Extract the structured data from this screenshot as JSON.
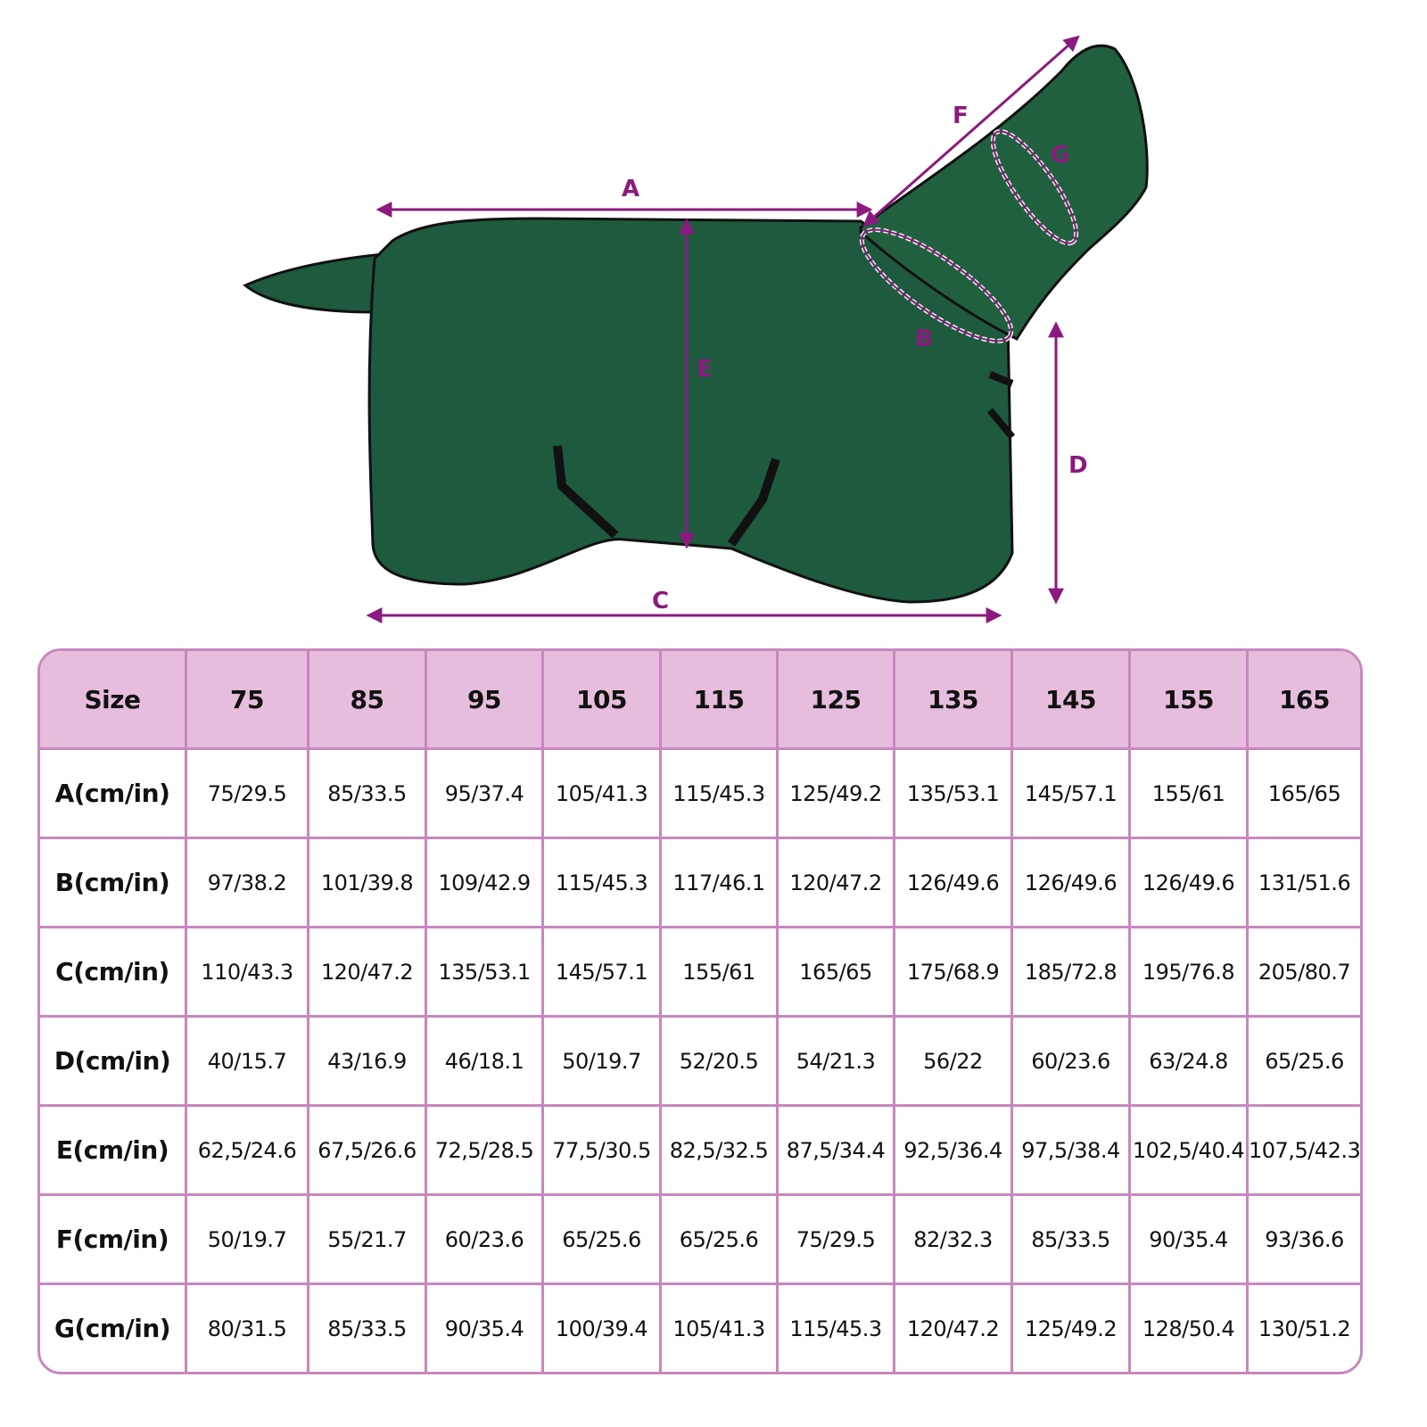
{
  "colors": {
    "accent": "#8b1a7e",
    "header_bg": "#e6bddc",
    "border": "#c887bf",
    "blanket": "#1d5a3e"
  },
  "diagram": {
    "labels": {
      "A": "A",
      "B": "B",
      "C": "C",
      "D": "D",
      "E": "E",
      "F": "F",
      "G": "G"
    }
  },
  "table": {
    "header": [
      "Size",
      "75",
      "85",
      "95",
      "105",
      "115",
      "125",
      "135",
      "145",
      "155",
      "165"
    ],
    "rows": [
      [
        "A(cm/in)",
        "75/29.5",
        "85/33.5",
        "95/37.4",
        "105/41.3",
        "115/45.3",
        "125/49.2",
        "135/53.1",
        "145/57.1",
        "155/61",
        "165/65"
      ],
      [
        "B(cm/in)",
        "97/38.2",
        "101/39.8",
        "109/42.9",
        "115/45.3",
        "117/46.1",
        "120/47.2",
        "126/49.6",
        "126/49.6",
        "126/49.6",
        "131/51.6"
      ],
      [
        "C(cm/in)",
        "110/43.3",
        "120/47.2",
        "135/53.1",
        "145/57.1",
        "155/61",
        "165/65",
        "175/68.9",
        "185/72.8",
        "195/76.8",
        "205/80.7"
      ],
      [
        "D(cm/in)",
        "40/15.7",
        "43/16.9",
        "46/18.1",
        "50/19.7",
        "52/20.5",
        "54/21.3",
        "56/22",
        "60/23.6",
        "63/24.8",
        "65/25.6"
      ],
      [
        "E(cm/in)",
        "62,5/24.6",
        "67,5/26.6",
        "72,5/28.5",
        "77,5/30.5",
        "82,5/32.5",
        "87,5/34.4",
        "92,5/36.4",
        "97,5/38.4",
        "102,5/40.4",
        "107,5/42.3"
      ],
      [
        "F(cm/in)",
        "50/19.7",
        "55/21.7",
        "60/23.6",
        "65/25.6",
        "65/25.6",
        "75/29.5",
        "82/32.3",
        "85/33.5",
        "90/35.4",
        "93/36.6"
      ],
      [
        "G(cm/in)",
        "80/31.5",
        "85/33.5",
        "90/35.4",
        "100/39.4",
        "105/41.3",
        "115/45.3",
        "120/47.2",
        "125/49.2",
        "128/50.4",
        "130/51.2"
      ]
    ]
  }
}
